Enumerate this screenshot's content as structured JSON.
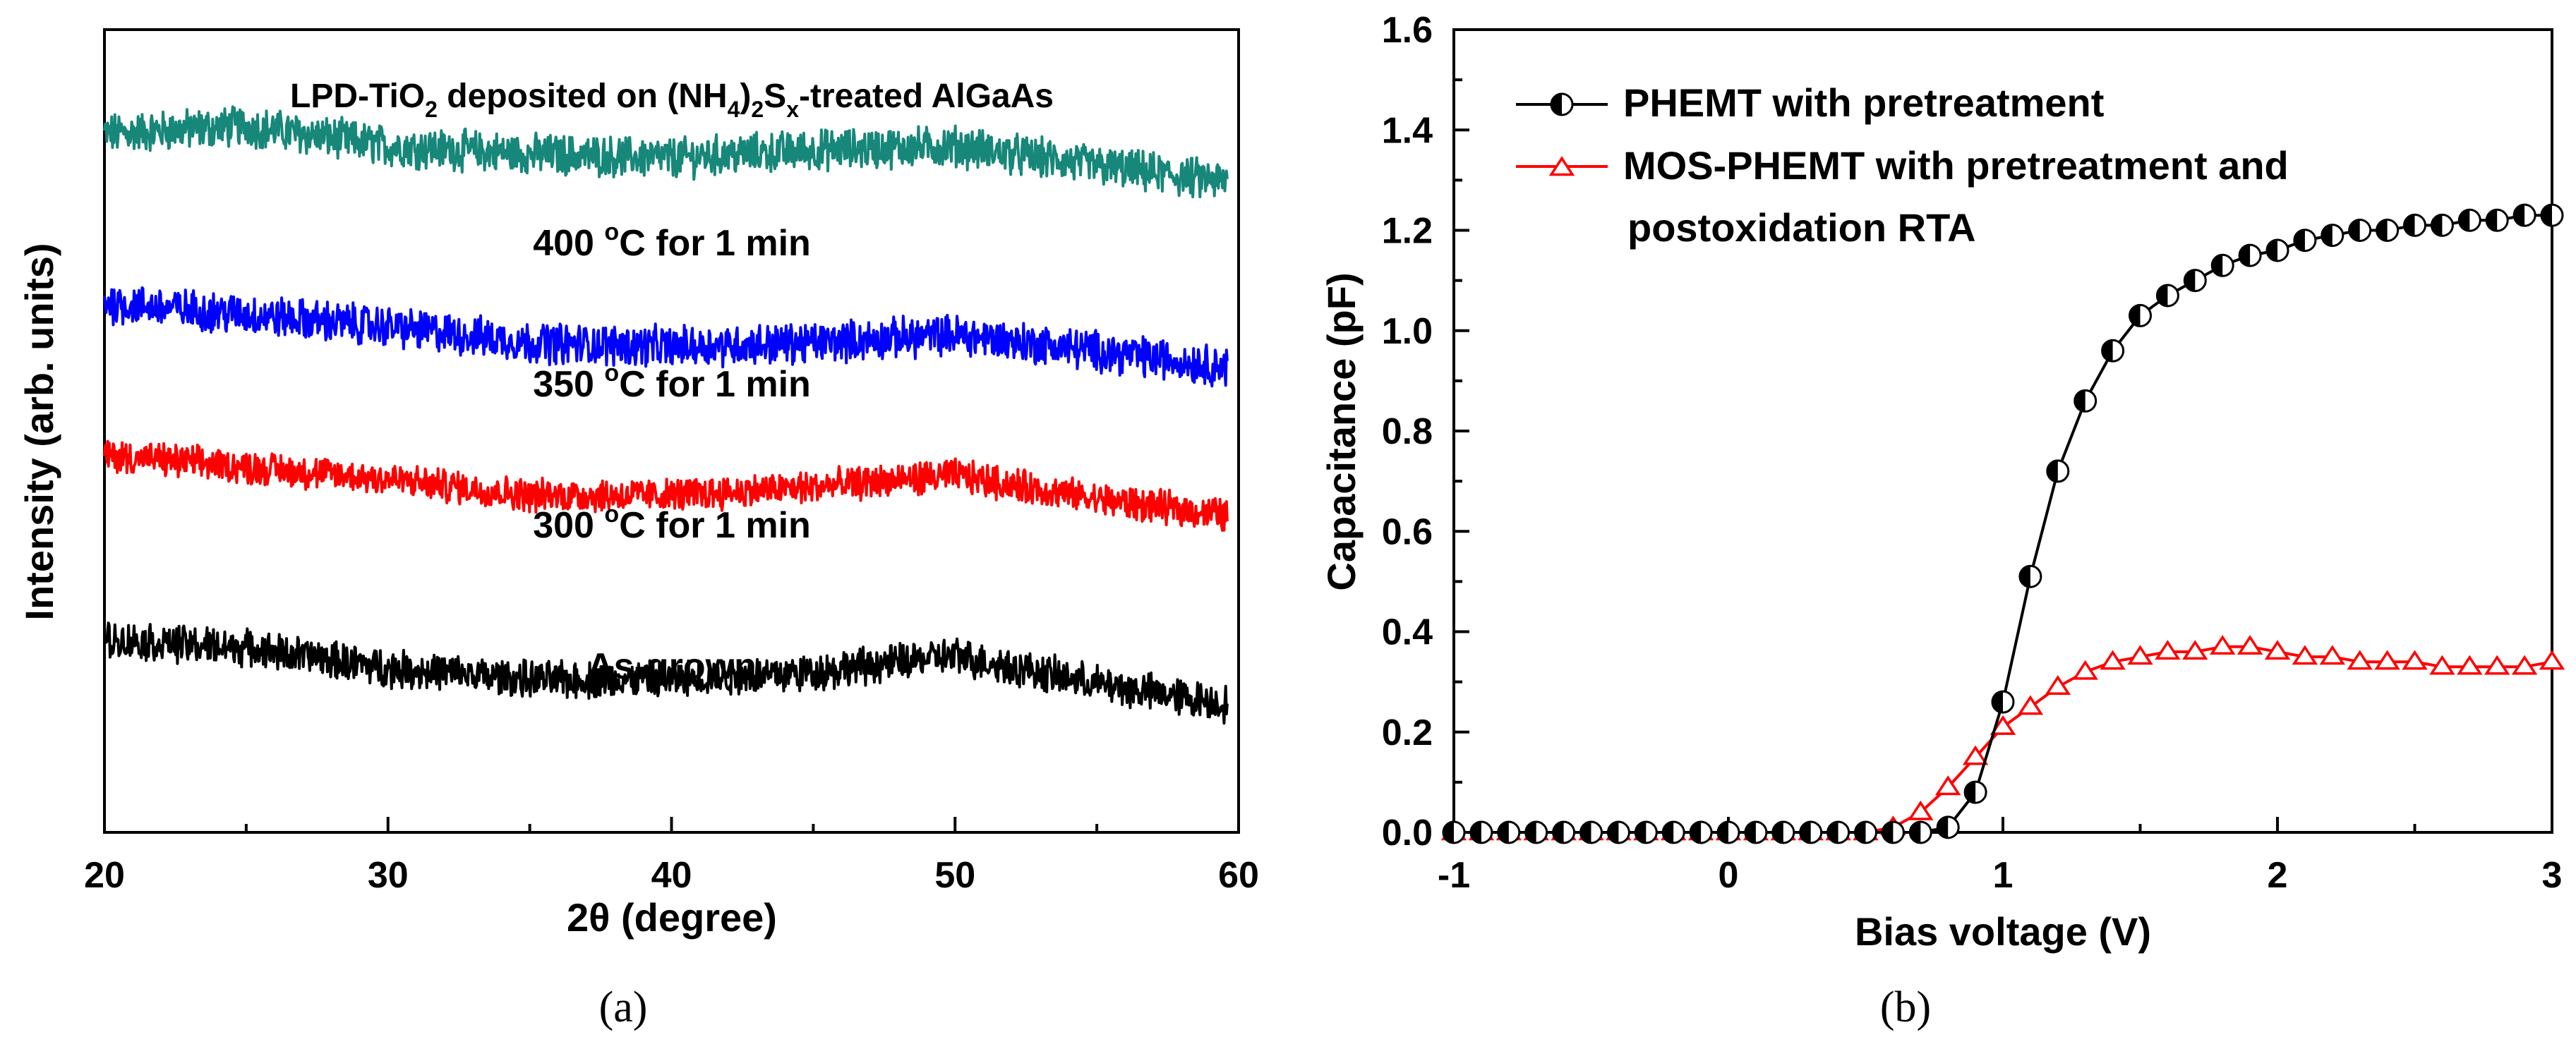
{
  "chart_data": [
    {
      "type": "line",
      "panel_label": "(a)",
      "title": "LPD-TiO2 deposited on (NH4)2Sx-treated AlGaAs",
      "title_parts": {
        "p1": "LPD-TiO",
        "sub1": "2",
        "p2": " deposited on (NH",
        "sub2": "4",
        "p3": ")",
        "sub3": "2",
        "p4": "S",
        "sub4": "x",
        "p5": "-treated AlGaAs"
      },
      "xlabel": "2θ (degree)",
      "ylabel": "Intensity (arb. units)",
      "xlim": [
        20,
        60
      ],
      "ylim": [
        0,
        10
      ],
      "xticks": [
        "20",
        "30",
        "40",
        "50",
        "60"
      ],
      "series": [
        {
          "name": "400 °C for 1 min",
          "label_parts": {
            "pre": "400 ",
            "sup": "o",
            "post": "C for 1 min"
          },
          "color": "#17877a",
          "x": [
            20,
            25,
            30,
            35,
            40,
            45,
            50,
            55,
            59.6
          ],
          "values": [
            8.7,
            8.8,
            8.55,
            8.45,
            8.4,
            8.5,
            8.55,
            8.3,
            8.1
          ],
          "noise": 0.22
        },
        {
          "name": "350 °C for 1 min",
          "label_parts": {
            "pre": "350 ",
            "sup": "o",
            "post": "C for 1 min"
          },
          "color": "#0000ff",
          "x": [
            20,
            25,
            30,
            35,
            40,
            45,
            50,
            55,
            59.6
          ],
          "values": [
            6.6,
            6.45,
            6.3,
            6.1,
            6.05,
            6.1,
            6.2,
            6.0,
            5.8
          ],
          "noise": 0.22
        },
        {
          "name": "300 °C for 1 min",
          "label_parts": {
            "pre": "300 ",
            "sup": "o",
            "post": "C for 1 min"
          },
          "color": "#ff0000",
          "x": [
            20,
            25,
            30,
            35,
            40,
            45,
            50,
            55,
            59.6
          ],
          "values": [
            4.7,
            4.55,
            4.4,
            4.2,
            4.2,
            4.3,
            4.45,
            4.15,
            3.95
          ],
          "noise": 0.18
        },
        {
          "name": "As-grown",
          "label_parts": {
            "pre": "As-grown",
            "sup": "",
            "post": ""
          },
          "color": "#000000",
          "x": [
            20,
            25,
            30,
            35,
            40,
            45,
            50,
            55,
            59.6
          ],
          "values": [
            2.4,
            2.3,
            2.05,
            1.9,
            1.9,
            2.0,
            2.2,
            1.85,
            1.6
          ],
          "noise": 0.2
        }
      ]
    },
    {
      "type": "line",
      "panel_label": "(b)",
      "xlabel": "Bias voltage (V)",
      "ylabel": "Capacitance (pF)",
      "xlim": [
        -1,
        3
      ],
      "ylim": [
        0,
        1.6
      ],
      "xticks": [
        "-1",
        "0",
        "1",
        "2",
        "3"
      ],
      "yticks": [
        "0.0",
        "0.2",
        "0.4",
        "0.6",
        "0.8",
        "1.0",
        "1.2",
        "1.4",
        "1.6"
      ],
      "legend": {
        "position": "top-left",
        "entries": [
          {
            "lines": [
              "PHEMT with pretreatment"
            ]
          },
          {
            "lines": [
              "MOS-PHEMT with pretreatment and",
              "postoxidation RTA"
            ]
          }
        ]
      },
      "series": [
        {
          "name": "PHEMT with pretreatment",
          "marker": "half-filled-circle",
          "color": "#000000",
          "x": [
            -1,
            -0.9,
            -0.8,
            -0.7,
            -0.6,
            -0.5,
            -0.4,
            -0.3,
            -0.2,
            -0.1,
            0,
            0.1,
            0.2,
            0.3,
            0.4,
            0.5,
            0.6,
            0.7,
            0.8,
            0.9,
            1.0,
            1.1,
            1.2,
            1.3,
            1.4,
            1.5,
            1.6,
            1.7,
            1.8,
            1.9,
            2.0,
            2.1,
            2.2,
            2.3,
            2.4,
            2.5,
            2.6,
            2.7,
            2.8,
            2.9,
            3.0
          ],
          "values": [
            0,
            0,
            0,
            0,
            0,
            0,
            0,
            0,
            0,
            0,
            0,
            0,
            0,
            0,
            0,
            0,
            0,
            0,
            0.01,
            0.08,
            0.26,
            0.51,
            0.72,
            0.86,
            0.96,
            1.03,
            1.07,
            1.1,
            1.13,
            1.15,
            1.16,
            1.18,
            1.19,
            1.2,
            1.2,
            1.21,
            1.21,
            1.22,
            1.22,
            1.23,
            1.23
          ]
        },
        {
          "name": "MOS-PHEMT with pretreatment and postoxidation RTA",
          "marker": "open-triangle",
          "color": "#ff0000",
          "x": [
            -1,
            -0.9,
            -0.8,
            -0.7,
            -0.6,
            -0.5,
            -0.4,
            -0.3,
            -0.2,
            -0.1,
            0,
            0.1,
            0.2,
            0.3,
            0.4,
            0.5,
            0.6,
            0.7,
            0.8,
            0.9,
            1.0,
            1.1,
            1.2,
            1.3,
            1.4,
            1.5,
            1.6,
            1.7,
            1.8,
            1.9,
            2.0,
            2.1,
            2.2,
            2.3,
            2.4,
            2.5,
            2.6,
            2.7,
            2.8,
            2.9,
            3.0
          ],
          "values": [
            0,
            0,
            0,
            0,
            0,
            0,
            0,
            0,
            0,
            0,
            0,
            0,
            0,
            0,
            0,
            0,
            0.01,
            0.04,
            0.09,
            0.15,
            0.21,
            0.25,
            0.29,
            0.32,
            0.34,
            0.35,
            0.36,
            0.36,
            0.37,
            0.37,
            0.36,
            0.35,
            0.35,
            0.34,
            0.34,
            0.34,
            0.33,
            0.33,
            0.33,
            0.33,
            0.34
          ]
        }
      ]
    }
  ]
}
